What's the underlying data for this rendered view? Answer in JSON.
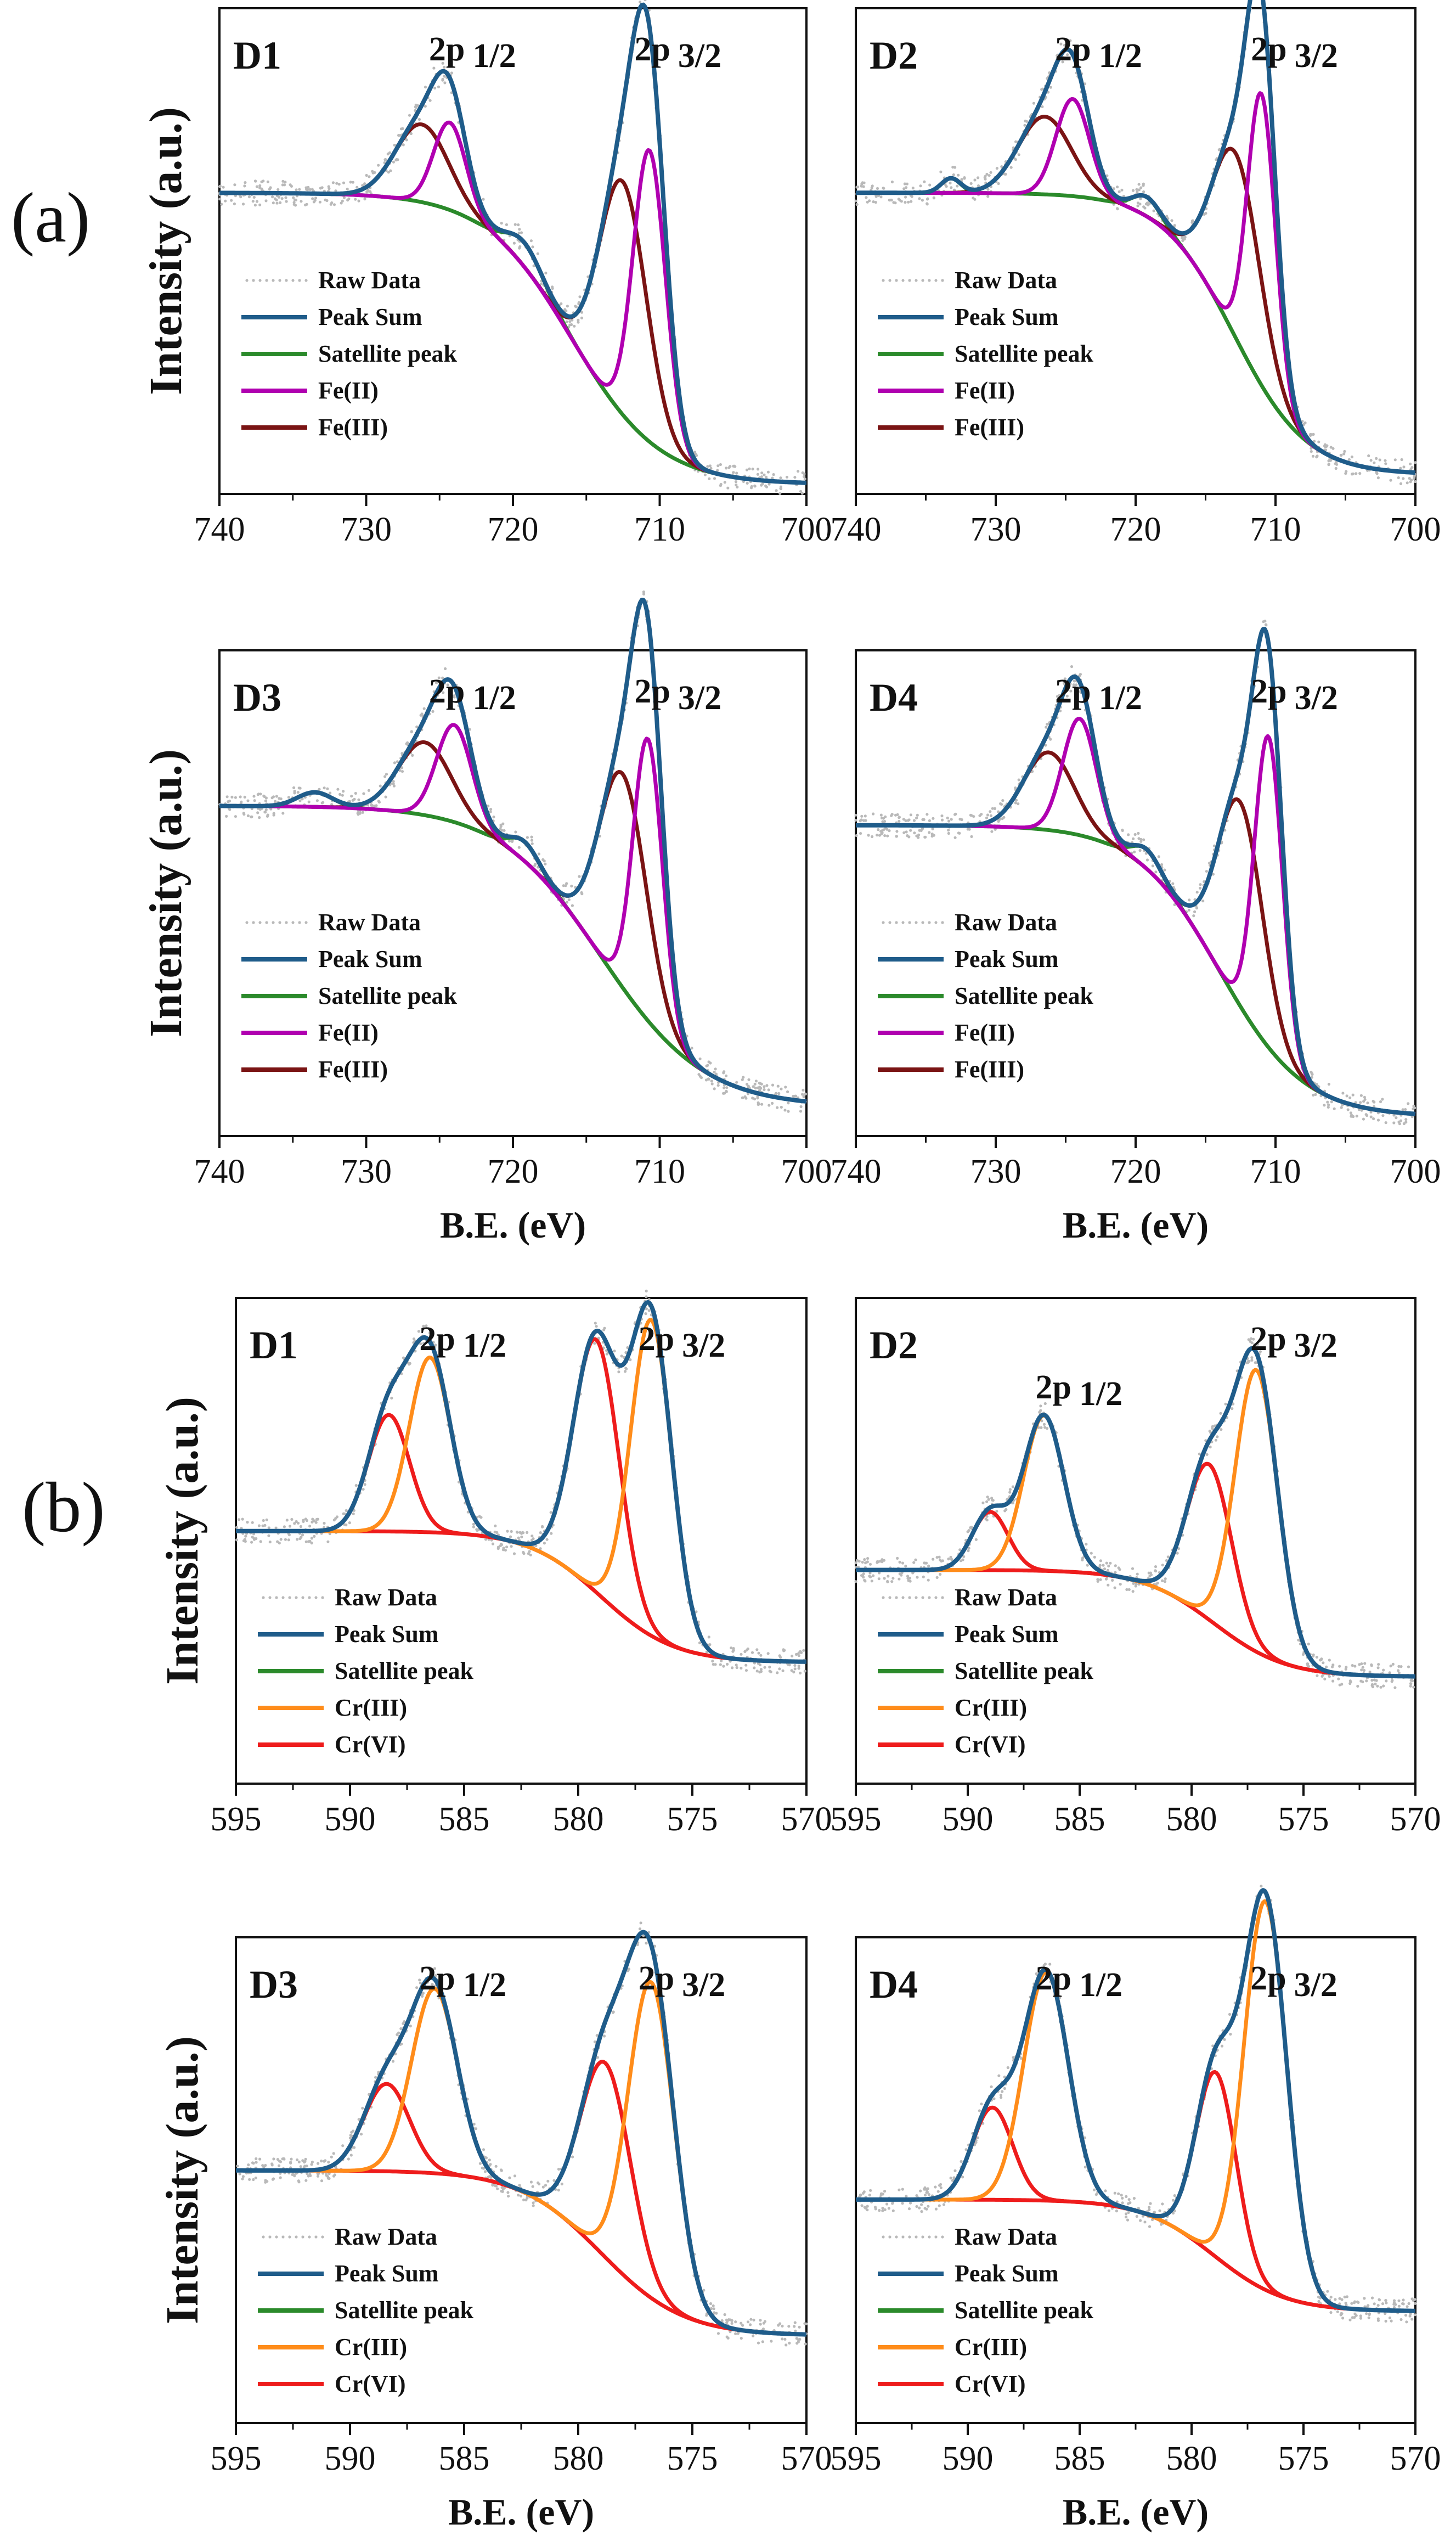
{
  "figure": {
    "section_labels": [
      "(a)",
      "(b)"
    ],
    "ylabel": "Intensity (a.u.)",
    "xlabel": "B.E. (eV)"
  },
  "colors": {
    "raw": "#b9b9b9",
    "peak_sum": "#1f5c8a",
    "satellite": "#2b8a2b",
    "fe2": "#b000b0",
    "fe3": "#7a1414",
    "cr3": "#ff8c1a",
    "cr6": "#ee1c1c"
  },
  "chart_data": [
    {
      "type": "line",
      "title": "D1",
      "element": "Fe",
      "xlim": [
        740,
        700
      ],
      "xticks": [
        740,
        730,
        720,
        710,
        700
      ],
      "ylim": [
        0,
        1
      ],
      "xlabel": "",
      "ylabel": "Intensity (a.u.)",
      "annotations": [
        {
          "text": "2p",
          "sub": "1/2",
          "x": 725
        },
        {
          "text": "2p",
          "sub": "3/2",
          "x": 711
        }
      ],
      "legend": [
        "Raw Data",
        "Peak Sum",
        "Satellite peak",
        "Fe(II)",
        "Fe(III)"
      ],
      "baseline": {
        "low": 0.02,
        "high": 0.62,
        "center": 716,
        "width": 3
      },
      "peaks": [
        {
          "series": "Fe(II)",
          "center": 710.7,
          "amp": 0.6,
          "sigma": 1.1
        },
        {
          "series": "Fe(III)",
          "center": 712.5,
          "amp": 0.48,
          "sigma": 1.6
        },
        {
          "series": "Fe(II)",
          "center": 724.3,
          "amp": 0.18,
          "sigma": 1.1
        },
        {
          "series": "Fe(III)",
          "center": 726.2,
          "amp": 0.16,
          "sigma": 1.8
        }
      ],
      "satellites": [
        {
          "center": 719.2,
          "amp": 0.05,
          "sigma": 1.2
        }
      ]
    },
    {
      "type": "line",
      "title": "D2",
      "element": "Fe",
      "xlim": [
        740,
        700
      ],
      "xticks": [
        740,
        730,
        720,
        710,
        700
      ],
      "ylim": [
        0,
        1
      ],
      "xlabel": "",
      "ylabel": "",
      "annotations": [
        {
          "text": "2p",
          "sub": "1/2",
          "x": 725
        },
        {
          "text": "2p",
          "sub": "3/2",
          "x": 711
        }
      ],
      "legend": [
        "Raw Data",
        "Peak Sum",
        "Satellite peak",
        "Fe(II)",
        "Fe(III)"
      ],
      "baseline": {
        "low": 0.04,
        "high": 0.62,
        "center": 713,
        "width": 2.6
      },
      "peaks": [
        {
          "series": "Fe(II)",
          "center": 711,
          "amp": 0.6,
          "sigma": 1.0
        },
        {
          "series": "Fe(III)",
          "center": 712.8,
          "amp": 0.38,
          "sigma": 1.7
        },
        {
          "series": "Fe(II)",
          "center": 724.5,
          "amp": 0.2,
          "sigma": 1.2
        },
        {
          "series": "Fe(III)",
          "center": 726.5,
          "amp": 0.16,
          "sigma": 1.9
        }
      ],
      "satellites": [
        {
          "center": 733.2,
          "amp": 0.03,
          "sigma": 0.7
        },
        {
          "center": 719.2,
          "amp": 0.04,
          "sigma": 1.0
        }
      ]
    },
    {
      "type": "line",
      "title": "D3",
      "element": "Fe",
      "xlim": [
        740,
        700
      ],
      "xticks": [
        740,
        730,
        720,
        710,
        700
      ],
      "ylim": [
        0,
        1
      ],
      "xlabel": "B.E. (eV)",
      "ylabel": "Intensity (a.u.)",
      "annotations": [
        {
          "text": "2p",
          "sub": "1/2",
          "x": 725
        },
        {
          "text": "2p",
          "sub": "3/2",
          "x": 711
        }
      ],
      "legend": [
        "Raw Data",
        "Peak Sum",
        "Satellite peak",
        "Fe(II)",
        "Fe(III)"
      ],
      "baseline": {
        "low": 0.06,
        "high": 0.68,
        "center": 714,
        "width": 3.5
      },
      "peaks": [
        {
          "series": "Fe(II)",
          "center": 710.8,
          "amp": 0.58,
          "sigma": 1.0
        },
        {
          "series": "Fe(III)",
          "center": 712.5,
          "amp": 0.44,
          "sigma": 1.6
        },
        {
          "series": "Fe(II)",
          "center": 724,
          "amp": 0.2,
          "sigma": 1.2
        },
        {
          "series": "Fe(III)",
          "center": 726,
          "amp": 0.15,
          "sigma": 1.8
        }
      ],
      "satellites": [
        {
          "center": 733.5,
          "amp": 0.03,
          "sigma": 1.2
        },
        {
          "center": 719.2,
          "amp": 0.04,
          "sigma": 1.0
        }
      ]
    },
    {
      "type": "line",
      "title": "D4",
      "element": "Fe",
      "xlim": [
        740,
        700
      ],
      "xticks": [
        740,
        730,
        720,
        710,
        700
      ],
      "ylim": [
        0,
        1
      ],
      "xlabel": "B.E. (eV)",
      "ylabel": "",
      "annotations": [
        {
          "text": "2p",
          "sub": "1/2",
          "x": 725
        },
        {
          "text": "2p",
          "sub": "3/2",
          "x": 711
        }
      ],
      "legend": [
        "Raw Data",
        "Peak Sum",
        "Satellite peak",
        "Fe(II)",
        "Fe(III)"
      ],
      "baseline": {
        "low": 0.04,
        "high": 0.64,
        "center": 714,
        "width": 3
      },
      "peaks": [
        {
          "series": "Fe(II)",
          "center": 710.5,
          "amp": 0.64,
          "sigma": 1.0
        },
        {
          "series": "Fe(III)",
          "center": 712.5,
          "amp": 0.42,
          "sigma": 1.6
        },
        {
          "series": "Fe(II)",
          "center": 724,
          "amp": 0.24,
          "sigma": 1.2
        },
        {
          "series": "Fe(III)",
          "center": 726.2,
          "amp": 0.16,
          "sigma": 1.8
        }
      ],
      "satellites": [
        {
          "center": 719.2,
          "amp": 0.04,
          "sigma": 1.0
        }
      ]
    },
    {
      "type": "line",
      "title": "D1",
      "element": "Cr",
      "xlim": [
        595,
        570
      ],
      "xticks": [
        595,
        590,
        585,
        580,
        575,
        570
      ],
      "ylim": [
        0,
        1
      ],
      "xlabel": "",
      "ylabel": "Intensity (a.u.)",
      "annotations": [
        {
          "text": "2p",
          "sub": "1/2",
          "x": 586.5
        },
        {
          "text": "2p",
          "sub": "3/2",
          "x": 576.9
        }
      ],
      "legend": [
        "Raw Data",
        "Peak Sum",
        "Satellite peak",
        "Cr(III)",
        "Cr(VI)"
      ],
      "baseline": {
        "low": 0.25,
        "high": 0.52,
        "center": 579,
        "width": 1.6
      },
      "peaks": [
        {
          "series": "Cr(III)",
          "center": 576.8,
          "amp": 0.65,
          "sigma": 0.9
        },
        {
          "series": "Cr(VI)",
          "center": 579.2,
          "amp": 0.52,
          "sigma": 1.0
        },
        {
          "series": "Cr(III)",
          "center": 586.5,
          "amp": 0.36,
          "sigma": 0.9
        },
        {
          "series": "Cr(VI)",
          "center": 588.3,
          "amp": 0.24,
          "sigma": 0.9
        }
      ],
      "satellites": []
    },
    {
      "type": "line",
      "title": "D2",
      "element": "Cr",
      "xlim": [
        595,
        570
      ],
      "xticks": [
        595,
        590,
        585,
        580,
        575,
        570
      ],
      "ylim": [
        0,
        1
      ],
      "xlabel": "",
      "ylabel": "",
      "annotations": [
        {
          "text": "2p",
          "sub": "1/2",
          "x": 586.5
        },
        {
          "text": "2p",
          "sub": "3/2",
          "x": 576.9
        }
      ],
      "legend": [
        "Raw Data",
        "Peak Sum",
        "Satellite peak",
        "Cr(III)",
        "Cr(VI)"
      ],
      "baseline": {
        "low": 0.22,
        "high": 0.44,
        "center": 579,
        "width": 1.6
      },
      "peaks": [
        {
          "series": "Cr(III)",
          "center": 577.1,
          "amp": 0.58,
          "sigma": 0.95
        },
        {
          "series": "Cr(VI)",
          "center": 579.2,
          "amp": 0.32,
          "sigma": 1.0
        },
        {
          "series": "Cr(III)",
          "center": 586.6,
          "amp": 0.32,
          "sigma": 0.9
        },
        {
          "series": "Cr(VI)",
          "center": 589,
          "amp": 0.12,
          "sigma": 0.8
        }
      ],
      "satellites": []
    },
    {
      "type": "line",
      "title": "D3",
      "element": "Cr",
      "xlim": [
        595,
        570
      ],
      "xticks": [
        595,
        590,
        585,
        580,
        575,
        570
      ],
      "ylim": [
        0,
        1
      ],
      "xlabel": "B.E. (eV)",
      "ylabel": "Intensity (a.u.)",
      "annotations": [
        {
          "text": "2p",
          "sub": "1/2",
          "x": 586.5
        },
        {
          "text": "2p",
          "sub": "3/2",
          "x": 576.9
        }
      ],
      "legend": [
        "Raw Data",
        "Peak Sum",
        "Satellite peak",
        "Cr(III)",
        "Cr(VI)"
      ],
      "baseline": {
        "low": 0.18,
        "high": 0.52,
        "center": 579,
        "width": 1.8
      },
      "peaks": [
        {
          "series": "Cr(III)",
          "center": 576.8,
          "amp": 0.65,
          "sigma": 1.0
        },
        {
          "series": "Cr(VI)",
          "center": 578.8,
          "amp": 0.4,
          "sigma": 1.1
        },
        {
          "series": "Cr(III)",
          "center": 586.3,
          "amp": 0.38,
          "sigma": 1.0
        },
        {
          "series": "Cr(VI)",
          "center": 588.4,
          "amp": 0.18,
          "sigma": 1.0
        }
      ],
      "satellites": []
    },
    {
      "type": "line",
      "title": "D4",
      "element": "Cr",
      "xlim": [
        595,
        570
      ],
      "xticks": [
        595,
        590,
        585,
        580,
        575,
        570
      ],
      "ylim": [
        0,
        1
      ],
      "xlabel": "B.E. (eV)",
      "ylabel": "",
      "annotations": [
        {
          "text": "2p",
          "sub": "1/2",
          "x": 586.5
        },
        {
          "text": "2p",
          "sub": "3/2",
          "x": 576.9
        }
      ],
      "legend": [
        "Raw Data",
        "Peak Sum",
        "Satellite peak",
        "Cr(III)",
        "Cr(VI)"
      ],
      "baseline": {
        "low": 0.23,
        "high": 0.46,
        "center": 579,
        "width": 1.6
      },
      "peaks": [
        {
          "series": "Cr(III)",
          "center": 576.7,
          "amp": 0.8,
          "sigma": 0.95
        },
        {
          "series": "Cr(VI)",
          "center": 578.9,
          "amp": 0.38,
          "sigma": 0.9
        },
        {
          "series": "Cr(III)",
          "center": 586.5,
          "amp": 0.47,
          "sigma": 1.0
        },
        {
          "series": "Cr(VI)",
          "center": 588.9,
          "amp": 0.19,
          "sigma": 0.9
        }
      ],
      "satellites": []
    }
  ]
}
